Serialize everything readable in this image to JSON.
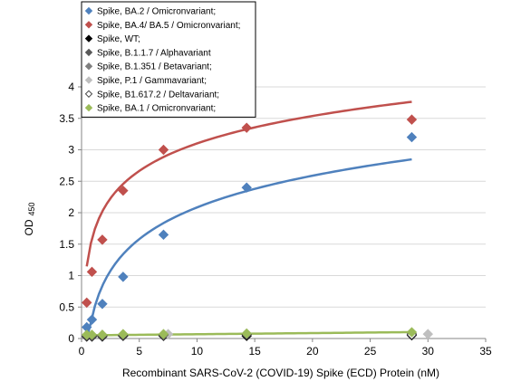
{
  "chart_data": {
    "type": "scatter",
    "xlabel": "Recombinant SARS-CoV-2 (COVID-19) Spike (ECD) Protein  (nM)",
    "ylabel": "OD",
    "ylabel_sub": "450",
    "xlim": [
      0,
      35
    ],
    "ylim": [
      0,
      4
    ],
    "xticks": [
      0,
      5,
      10,
      15,
      20,
      25,
      30,
      35
    ],
    "yticks": [
      0,
      0.5,
      1,
      1.5,
      2,
      2.5,
      3,
      3.5,
      4
    ],
    "grid": "horizontal",
    "legend_position": "top-left",
    "series": [
      {
        "name": "Spike, BA.2 / Omicronvariant;",
        "color": "#4F81BD",
        "marker": "diamond",
        "trendline": {
          "type": "log",
          "a": 0.727,
          "b": 0.41,
          "x_range": [
            0.45,
            28.6
          ]
        },
        "points": [
          [
            0.45,
            0.18
          ],
          [
            0.9,
            0.3
          ],
          [
            1.8,
            0.55
          ],
          [
            3.6,
            0.98
          ],
          [
            7.1,
            1.65
          ],
          [
            14.3,
            2.4
          ],
          [
            28.6,
            3.2
          ]
        ]
      },
      {
        "name": "Spike, BA.4/ BA.5 / Omicronvariant;",
        "color": "#C0504D",
        "marker": "diamond",
        "trendline": {
          "type": "log",
          "a": 0.63,
          "b": 1.65,
          "x_range": [
            0.45,
            28.6
          ]
        },
        "points": [
          [
            0.45,
            0.57
          ],
          [
            0.9,
            1.06
          ],
          [
            1.8,
            1.57
          ],
          [
            3.6,
            2.35
          ],
          [
            7.1,
            3.0
          ],
          [
            14.3,
            3.35
          ],
          [
            28.6,
            3.48
          ]
        ]
      },
      {
        "name": "Spike, WT;",
        "color": "#000000",
        "marker": "diamond",
        "points": [
          [
            0.45,
            0.03
          ],
          [
            0.9,
            0.03
          ],
          [
            1.8,
            0.03
          ],
          [
            3.6,
            0.04
          ],
          [
            7.1,
            0.04
          ],
          [
            14.3,
            0.04
          ],
          [
            28.6,
            0.05
          ]
        ]
      },
      {
        "name": "Spike, B.1.1.7 / Alphavariant",
        "color": "#595959",
        "marker": "diamond",
        "points": [
          [
            0.45,
            0.04
          ],
          [
            0.9,
            0.04
          ],
          [
            1.8,
            0.04
          ],
          [
            3.6,
            0.05
          ],
          [
            7.1,
            0.05
          ],
          [
            14.3,
            0.06
          ],
          [
            28.6,
            0.07
          ]
        ]
      },
      {
        "name": "Spike, B.1.351 / Betavariant;",
        "color": "#7F7F7F",
        "marker": "diamond",
        "points": [
          [
            0.45,
            0.05
          ],
          [
            0.9,
            0.05
          ],
          [
            1.8,
            0.05
          ],
          [
            3.6,
            0.06
          ],
          [
            7.1,
            0.06
          ],
          [
            14.3,
            0.07
          ],
          [
            28.6,
            0.08
          ]
        ]
      },
      {
        "name": "Spike, P.1 / Gammavariant;",
        "color": "#BFBFBF",
        "marker": "diamond",
        "points": [
          [
            0.45,
            0.05
          ],
          [
            0.9,
            0.05
          ],
          [
            1.8,
            0.06
          ],
          [
            3.6,
            0.06
          ],
          [
            7.5,
            0.07
          ],
          [
            14.3,
            0.08
          ],
          [
            30,
            0.07
          ]
        ]
      },
      {
        "name": "Spike, B1.617.2 / Deltavariant;",
        "color": "#7F7F7F",
        "marker": "diamond-open",
        "points": [
          [
            0.45,
            0.04
          ],
          [
            0.9,
            0.05
          ],
          [
            1.8,
            0.05
          ],
          [
            3.6,
            0.05
          ],
          [
            7.1,
            0.06
          ],
          [
            14.3,
            0.06
          ],
          [
            28.6,
            0.06
          ]
        ]
      },
      {
        "name": "Spike, BA.1 / Omicronvariant;",
        "color": "#9BBB59",
        "marker": "diamond",
        "trendline": {
          "type": "linear",
          "m": 0.0018,
          "c": 0.05,
          "x_range": [
            0.45,
            28.6
          ]
        },
        "points": [
          [
            0.45,
            0.06
          ],
          [
            0.9,
            0.06
          ],
          [
            1.8,
            0.06
          ],
          [
            3.6,
            0.07
          ],
          [
            7.1,
            0.07
          ],
          [
            14.3,
            0.08
          ],
          [
            28.6,
            0.1
          ]
        ]
      }
    ]
  }
}
